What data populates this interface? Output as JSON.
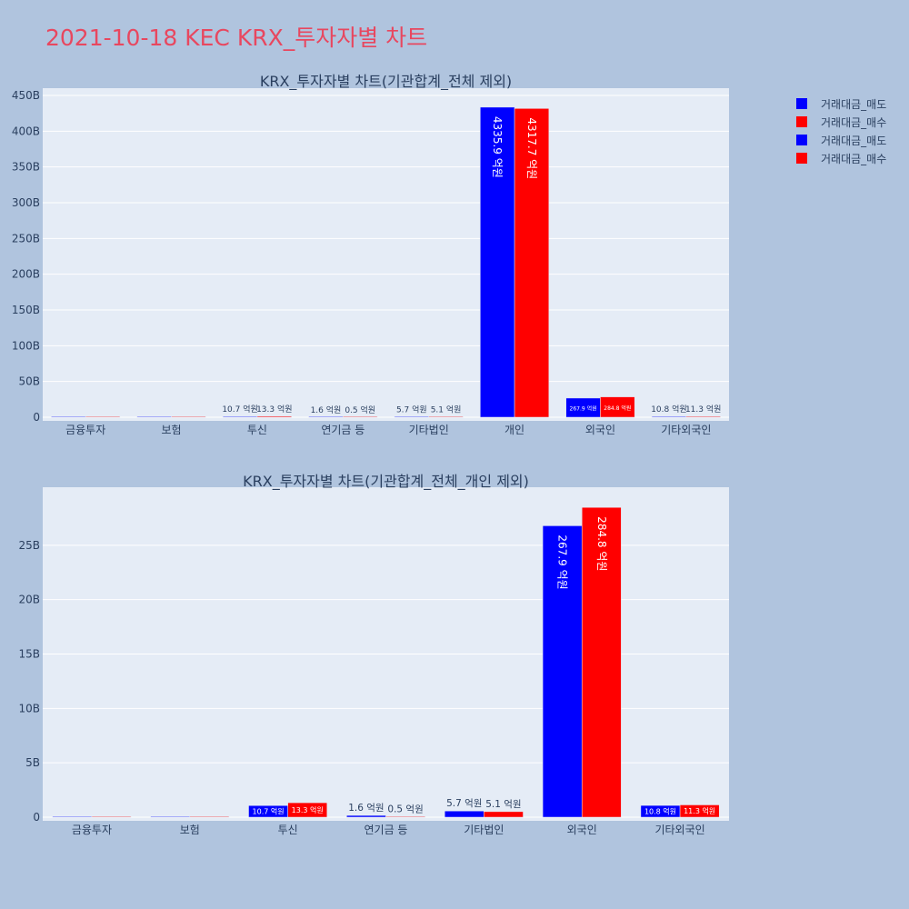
{
  "page": {
    "title": "2021-10-18 KEC KRX_투자자별 차트"
  },
  "legend": {
    "position": "top-right",
    "items": [
      {
        "label": "거래대금_매도",
        "color": "#0000ff"
      },
      {
        "label": "거래대금_매수",
        "color": "#ff0000"
      },
      {
        "label": "거래대금_매도",
        "color": "#0000ff"
      },
      {
        "label": "거래대금_매수",
        "color": "#ff0000"
      }
    ]
  },
  "colors": {
    "sell": "#0000ff",
    "buy": "#ff0000",
    "plot_bg": "#e5ecf6",
    "paper_bg": "#b0c4de",
    "title": "#e8475f",
    "text": "#2a3f5f"
  },
  "chart_data": [
    {
      "type": "bar",
      "title": "KRX_투자자별 차트(기관합계_전체 제외)",
      "categories": [
        "금융투자",
        "보험",
        "투신",
        "연기금 등",
        "기타법인",
        "개인",
        "외국인",
        "기타외국인"
      ],
      "ylim": [
        0,
        450
      ],
      "yticks": [
        0,
        50,
        100,
        150,
        200,
        250,
        300,
        350,
        400,
        450
      ],
      "ytick_labels": [
        "0",
        "50B",
        "100B",
        "150B",
        "200B",
        "250B",
        "300B",
        "350B",
        "400B",
        "450B"
      ],
      "grid": true,
      "series": [
        {
          "name": "거래대금_매도",
          "color": "#0000ff",
          "values": [
            0,
            0,
            1.07,
            0.16,
            0.57,
            433.59,
            26.79,
            1.08
          ],
          "labels": [
            "",
            "",
            "10.7 억원",
            "1.6 억원",
            "5.7 억원",
            "4335.9 억원",
            "267.9 억원",
            "10.8 억원"
          ]
        },
        {
          "name": "거래대금_매수",
          "color": "#ff0000",
          "values": [
            0,
            0,
            1.33,
            0.05,
            0.51,
            431.77,
            28.48,
            1.13
          ],
          "labels": [
            "",
            "",
            "13.3 억원",
            "0.5 억원",
            "5.1 억원",
            "4317.7 억원",
            "284.8 억원",
            "11.3 억원"
          ]
        }
      ]
    },
    {
      "type": "bar",
      "title": "KRX_투자자별 차트(기관합계_전체_개인 제외)",
      "categories": [
        "금융투자",
        "보험",
        "투신",
        "연기금 등",
        "기타법인",
        "외국인",
        "기타외국인"
      ],
      "ylim": [
        0,
        30
      ],
      "yticks": [
        0,
        5,
        10,
        15,
        20,
        25
      ],
      "ytick_labels": [
        "0",
        "5B",
        "10B",
        "15B",
        "20B",
        "25B"
      ],
      "grid": true,
      "series": [
        {
          "name": "거래대금_매도",
          "color": "#0000ff",
          "values": [
            0,
            0,
            1.07,
            0.16,
            0.57,
            26.79,
            1.08
          ],
          "labels": [
            "",
            "",
            "10.7 억원",
            "1.6 억원",
            "5.7 억원",
            "267.9 억원",
            "10.8 억원"
          ]
        },
        {
          "name": "거래대금_매수",
          "color": "#ff0000",
          "values": [
            0,
            0,
            1.33,
            0.05,
            0.51,
            28.48,
            1.13
          ],
          "labels": [
            "",
            "",
            "13.3 억원",
            "0.5 억원",
            "5.1 억원",
            "284.8 억원",
            "11.3 억원"
          ]
        }
      ]
    }
  ]
}
